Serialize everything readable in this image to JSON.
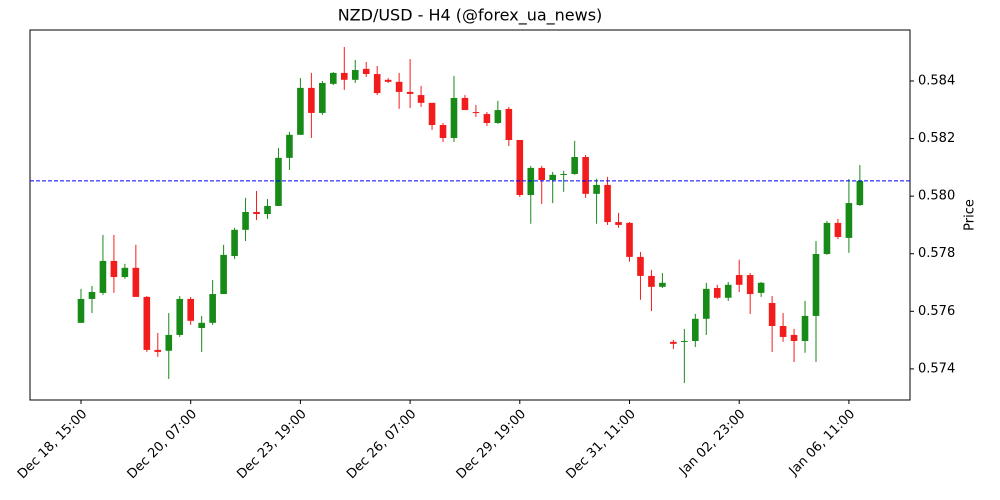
{
  "chart_data": {
    "type": "candlestick",
    "title": "NZD/USD - H4 (@forex_ua_news)",
    "ylabel": "Price",
    "categories": [
      "Dec 18, 15:00",
      null,
      null,
      null,
      null,
      null,
      null,
      null,
      null,
      null,
      "Dec 20, 07:00",
      null,
      null,
      null,
      null,
      null,
      null,
      null,
      null,
      null,
      "Dec 23, 19:00",
      null,
      null,
      null,
      null,
      null,
      null,
      null,
      null,
      null,
      "Dec 26, 07:00",
      null,
      null,
      null,
      null,
      null,
      null,
      null,
      null,
      null,
      "Dec 29, 19:00",
      null,
      null,
      null,
      null,
      null,
      null,
      null,
      null,
      null,
      "Dec 31, 11:00",
      null,
      null,
      null,
      null,
      null,
      null,
      null,
      null,
      null,
      "Jan 02, 23:00",
      null,
      null,
      null,
      null,
      null,
      null,
      null,
      null,
      null,
      "Jan 06, 11:00",
      null
    ],
    "open": [
      0.5756,
      0.57643,
      0.57664,
      0.57775,
      0.57719,
      0.57751,
      0.5765,
      0.57466,
      0.57463,
      0.57518,
      0.57643,
      0.57542,
      0.5756,
      0.5766,
      0.57792,
      0.57883,
      0.57945,
      0.57938,
      0.57966,
      0.58133,
      0.58213,
      0.58376,
      0.58289,
      0.5839,
      0.58428,
      0.58404,
      0.58442,
      0.58424,
      0.58404,
      0.58397,
      0.58362,
      0.58351,
      0.58324,
      0.58247,
      0.58202,
      0.58341,
      0.58292,
      0.58285,
      0.58254,
      0.58303,
      0.58195,
      0.58004,
      0.58098,
      0.58056,
      0.58074,
      0.58077,
      0.58136,
      0.58008,
      0.58039,
      0.5791,
      0.57907,
      0.57789,
      0.57723,
      0.57685,
      0.57494,
      0.57494,
      0.57497,
      0.57574,
      0.57681,
      0.57647,
      0.57726,
      0.57726,
      0.57664,
      0.57629,
      0.57549,
      0.57518,
      0.57497,
      0.57584,
      0.57799,
      0.57907,
      0.57855,
      0.57969
    ],
    "high": [
      0.57678,
      0.57688,
      0.57865,
      0.57865,
      0.57765,
      0.57831,
      0.57653,
      0.57525,
      0.57594,
      0.57653,
      0.5765,
      0.57584,
      0.57709,
      0.57831,
      0.5789,
      0.57994,
      0.58018,
      0.5799,
      0.58167,
      0.58223,
      0.5841,
      0.58428,
      0.584,
      0.58431,
      0.58518,
      0.58473,
      0.58466,
      0.58452,
      0.5841,
      0.58428,
      0.58476,
      0.58383,
      0.58324,
      0.58254,
      0.58417,
      0.58351,
      0.58317,
      0.58292,
      0.58331,
      0.5831,
      0.58195,
      0.58105,
      0.58105,
      0.58084,
      0.58088,
      0.58192,
      0.58143,
      0.5806,
      0.58067,
      0.57942,
      0.5791,
      0.57806,
      0.57744,
      0.57733,
      0.57501,
      0.57539,
      0.57591,
      0.57699,
      0.57692,
      0.57702,
      0.57779,
      0.57733,
      0.57702,
      0.57653,
      0.57594,
      0.57539,
      0.57636,
      0.57844,
      0.57914,
      0.57921,
      0.5806,
      0.58108
    ],
    "low": [
      0.5756,
      0.57594,
      0.57657,
      0.57664,
      0.57713,
      0.5765,
      0.57459,
      0.57442,
      0.57365,
      0.57511,
      0.57553,
      0.57459,
      0.57553,
      0.5766,
      0.57782,
      0.57844,
      0.57917,
      0.57921,
      0.57966,
      0.58091,
      0.58213,
      0.58202,
      0.58282,
      0.58386,
      0.58369,
      0.58393,
      0.58414,
      0.58351,
      0.58393,
      0.58303,
      0.58306,
      0.5831,
      0.5823,
      0.58188,
      0.58188,
      0.58299,
      0.58275,
      0.58244,
      0.58251,
      0.58174,
      0.57997,
      0.57904,
      0.57973,
      0.57976,
      0.58015,
      0.58074,
      0.57994,
      0.57904,
      0.579,
      0.5789,
      0.57772,
      0.5764,
      0.57601,
      0.57681,
      0.57469,
      0.57351,
      0.57476,
      0.57518,
      0.57643,
      0.57636,
      0.57667,
      0.57591,
      0.5765,
      0.57459,
      0.57494,
      0.57424,
      0.57456,
      0.57424,
      0.57796,
      0.57851,
      0.57803,
      0.57966
    ],
    "close": [
      0.57643,
      0.57667,
      0.57775,
      0.57719,
      0.57751,
      0.5765,
      0.57466,
      0.57459,
      0.57518,
      0.57643,
      0.57567,
      0.5756,
      0.5766,
      0.57796,
      0.57883,
      0.57945,
      0.57938,
      0.57966,
      0.58133,
      0.58213,
      0.58376,
      0.58289,
      0.58393,
      0.58428,
      0.58404,
      0.58438,
      0.58424,
      0.58358,
      0.58397,
      0.58362,
      0.58355,
      0.58324,
      0.58247,
      0.58202,
      0.58341,
      0.58299,
      0.58289,
      0.58254,
      0.58299,
      0.58195,
      0.58004,
      0.58098,
      0.58056,
      0.58074,
      0.58077,
      0.58136,
      0.58008,
      0.58039,
      0.5791,
      0.579,
      0.57789,
      0.57723,
      0.57685,
      0.57699,
      0.57487,
      0.57497,
      0.57574,
      0.57678,
      0.57647,
      0.57692,
      0.57692,
      0.5766,
      0.57699,
      0.57549,
      0.57511,
      0.57497,
      0.57584,
      0.57799,
      0.57907,
      0.57858,
      0.57976,
      0.58053
    ],
    "up_color": "#178a17",
    "down_color": "#f21c1c",
    "hline": 0.58053,
    "hline_color": "#0000ff",
    "ylim": [
      0.57292,
      0.58577
    ],
    "yticks": [
      0.574,
      0.576,
      0.578,
      {
        "value": 0.58,
        "label": "0.580"
      },
      0.582,
      0.584
    ]
  }
}
